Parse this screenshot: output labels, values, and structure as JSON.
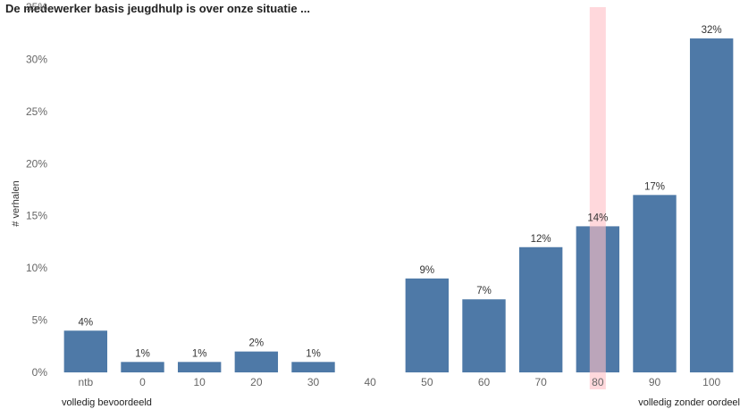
{
  "chart_data": {
    "type": "bar",
    "title": "De medewerker basis jeugdhulp is over onze situatie ...",
    "ylabel": "# verhalen",
    "xlabel": "",
    "categories": [
      "ntb",
      "0",
      "10",
      "20",
      "30",
      "40",
      "50",
      "60",
      "70",
      "80",
      "90",
      "100"
    ],
    "values": [
      4,
      1,
      1,
      2,
      1,
      null,
      9,
      7,
      12,
      14,
      17,
      32
    ],
    "data_labels": [
      "4%",
      "1%",
      "1%",
      "2%",
      "1%",
      "",
      "9%",
      "7%",
      "12%",
      "14%",
      "17%",
      "32%"
    ],
    "ylim": [
      0,
      35
    ],
    "yticks": [
      0,
      5,
      10,
      15,
      20,
      25,
      30,
      35
    ],
    "ytick_labels": [
      "0%",
      "5%",
      "10%",
      "15%",
      "20%",
      "25%",
      "30%",
      "35%"
    ],
    "highlight_category": "80",
    "grid": false,
    "x_start_label": "volledig bevoordeeld",
    "x_end_label": "volledig zonder oordeel",
    "colors": {
      "bar": "#4e79a7",
      "highlight": "#ffc0c7",
      "axis_text": "#666666"
    }
  }
}
